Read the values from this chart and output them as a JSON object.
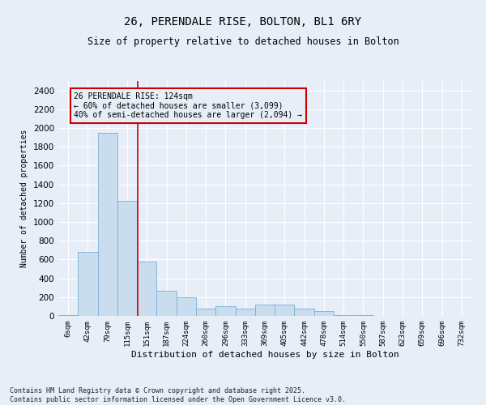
{
  "title_line1": "26, PERENDALE RISE, BOLTON, BL1 6RY",
  "title_line2": "Size of property relative to detached houses in Bolton",
  "xlabel": "Distribution of detached houses by size in Bolton",
  "ylabel": "Number of detached properties",
  "categories": [
    "6sqm",
    "42sqm",
    "79sqm",
    "115sqm",
    "151sqm",
    "187sqm",
    "224sqm",
    "260sqm",
    "296sqm",
    "333sqm",
    "369sqm",
    "405sqm",
    "442sqm",
    "478sqm",
    "514sqm",
    "550sqm",
    "587sqm",
    "623sqm",
    "659sqm",
    "696sqm",
    "732sqm"
  ],
  "values": [
    5,
    680,
    1950,
    1220,
    580,
    270,
    195,
    80,
    100,
    80,
    125,
    125,
    80,
    50,
    10,
    5,
    2,
    1,
    1,
    1,
    1
  ],
  "bar_color": "#c9ddef",
  "bar_edge_color": "#7aafd4",
  "ylim": [
    0,
    2500
  ],
  "yticks": [
    0,
    200,
    400,
    600,
    800,
    1000,
    1200,
    1400,
    1600,
    1800,
    2000,
    2200,
    2400
  ],
  "vline_x": 3.55,
  "vline_color": "#cc0000",
  "annotation_text": "26 PERENDALE RISE: 124sqm\n← 60% of detached houses are smaller (3,099)\n40% of semi-detached houses are larger (2,094) →",
  "annotation_box_color": "#cc0000",
  "bg_color": "#e8eef8",
  "footnote": "Contains HM Land Registry data © Crown copyright and database right 2025.\nContains public sector information licensed under the Open Government Licence v3.0."
}
